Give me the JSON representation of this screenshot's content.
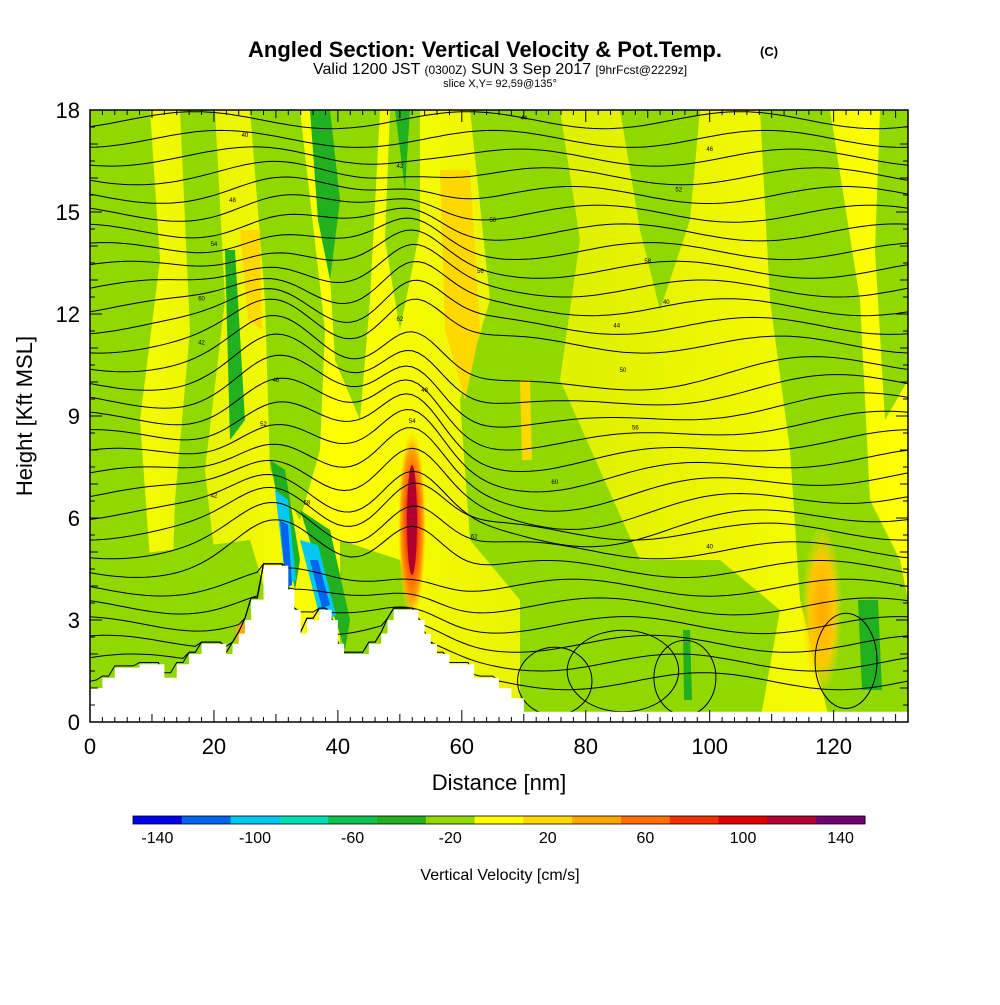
{
  "chart_data": {
    "type": "heatmap",
    "title": "Angled Section: Vertical Velocity & Pot.Temp.",
    "title_mark": "(C)",
    "subtitle_parts": [
      "Valid 1200 JST",
      "(0300Z)",
      "SUN 3 Sep 2017",
      "[9hrFcst@2229z]"
    ],
    "slice_info": "slice X,Y= 92,59@135°",
    "xlabel": "Distance [nm]",
    "ylabel": "Height [Kft MSL]",
    "xlim": [
      0,
      132
    ],
    "ylim": [
      0,
      18
    ],
    "x_ticks": [
      0,
      20,
      40,
      60,
      80,
      100,
      120
    ],
    "y_ticks": [
      0,
      3,
      6,
      9,
      12,
      15,
      18
    ],
    "colorbar": {
      "label": "Vertical Velocity [cm/s]",
      "tick_labels": [
        "-140",
        "-100",
        "-60",
        "-20",
        "20",
        "60",
        "100",
        "140"
      ],
      "colors": [
        "#0000ee",
        "#0064ee",
        "#00c8ee",
        "#00e0b0",
        "#10c050",
        "#20b020",
        "#90d800",
        "#ffff00",
        "#ffd800",
        "#ffa800",
        "#ff7000",
        "#f03000",
        "#e00000",
        "#b00030",
        "#700070"
      ]
    },
    "terrain": [
      [
        0,
        1
      ],
      [
        2,
        1
      ],
      [
        2,
        1.3
      ],
      [
        4,
        1.3
      ],
      [
        4,
        1.6
      ],
      [
        8,
        1.6
      ],
      [
        8,
        1.7
      ],
      [
        12,
        1.7
      ],
      [
        12,
        1.3
      ],
      [
        14,
        1.3
      ],
      [
        14,
        1.7
      ],
      [
        16,
        1.7
      ],
      [
        16,
        2
      ],
      [
        18,
        2
      ],
      [
        18,
        2.3
      ],
      [
        22,
        2.3
      ],
      [
        22,
        2
      ],
      [
        23,
        2
      ],
      [
        23,
        2.3
      ],
      [
        24,
        2.3
      ],
      [
        24,
        2.6
      ],
      [
        25,
        2.6
      ],
      [
        25,
        3
      ],
      [
        26,
        3
      ],
      [
        26,
        3.6
      ],
      [
        28,
        3.6
      ],
      [
        28,
        4.6
      ],
      [
        32,
        4.6
      ],
      [
        32,
        3.9
      ],
      [
        33,
        3.9
      ],
      [
        33,
        3.3
      ],
      [
        34,
        3.3
      ],
      [
        34,
        2.6
      ],
      [
        35,
        2.6
      ],
      [
        35,
        3
      ],
      [
        37,
        3
      ],
      [
        37,
        3.3
      ],
      [
        39,
        3.3
      ],
      [
        39,
        3
      ],
      [
        40,
        3
      ],
      [
        40,
        2.3
      ],
      [
        41,
        2.3
      ],
      [
        41,
        2
      ],
      [
        45,
        2
      ],
      [
        45,
        2.3
      ],
      [
        47,
        2.3
      ],
      [
        47,
        2.6
      ],
      [
        48,
        2.6
      ],
      [
        48,
        3
      ],
      [
        49,
        3
      ],
      [
        49,
        3.3
      ],
      [
        53,
        3.3
      ],
      [
        53,
        3
      ],
      [
        54,
        3
      ],
      [
        54,
        2.6
      ],
      [
        55,
        2.6
      ],
      [
        55,
        2.3
      ],
      [
        56,
        2.3
      ],
      [
        56,
        2
      ],
      [
        58,
        2
      ],
      [
        58,
        1.7
      ],
      [
        62,
        1.7
      ],
      [
        62,
        1.3
      ],
      [
        66,
        1.3
      ],
      [
        66,
        1
      ],
      [
        68,
        1
      ],
      [
        68,
        0.7
      ],
      [
        70,
        0.7
      ],
      [
        70,
        0.3
      ],
      [
        132,
        0.3
      ]
    ],
    "theta_labels": [
      "40",
      "42",
      "44",
      "46",
      "48",
      "50",
      "52",
      "54",
      "56",
      "58",
      "60",
      "62"
    ]
  }
}
